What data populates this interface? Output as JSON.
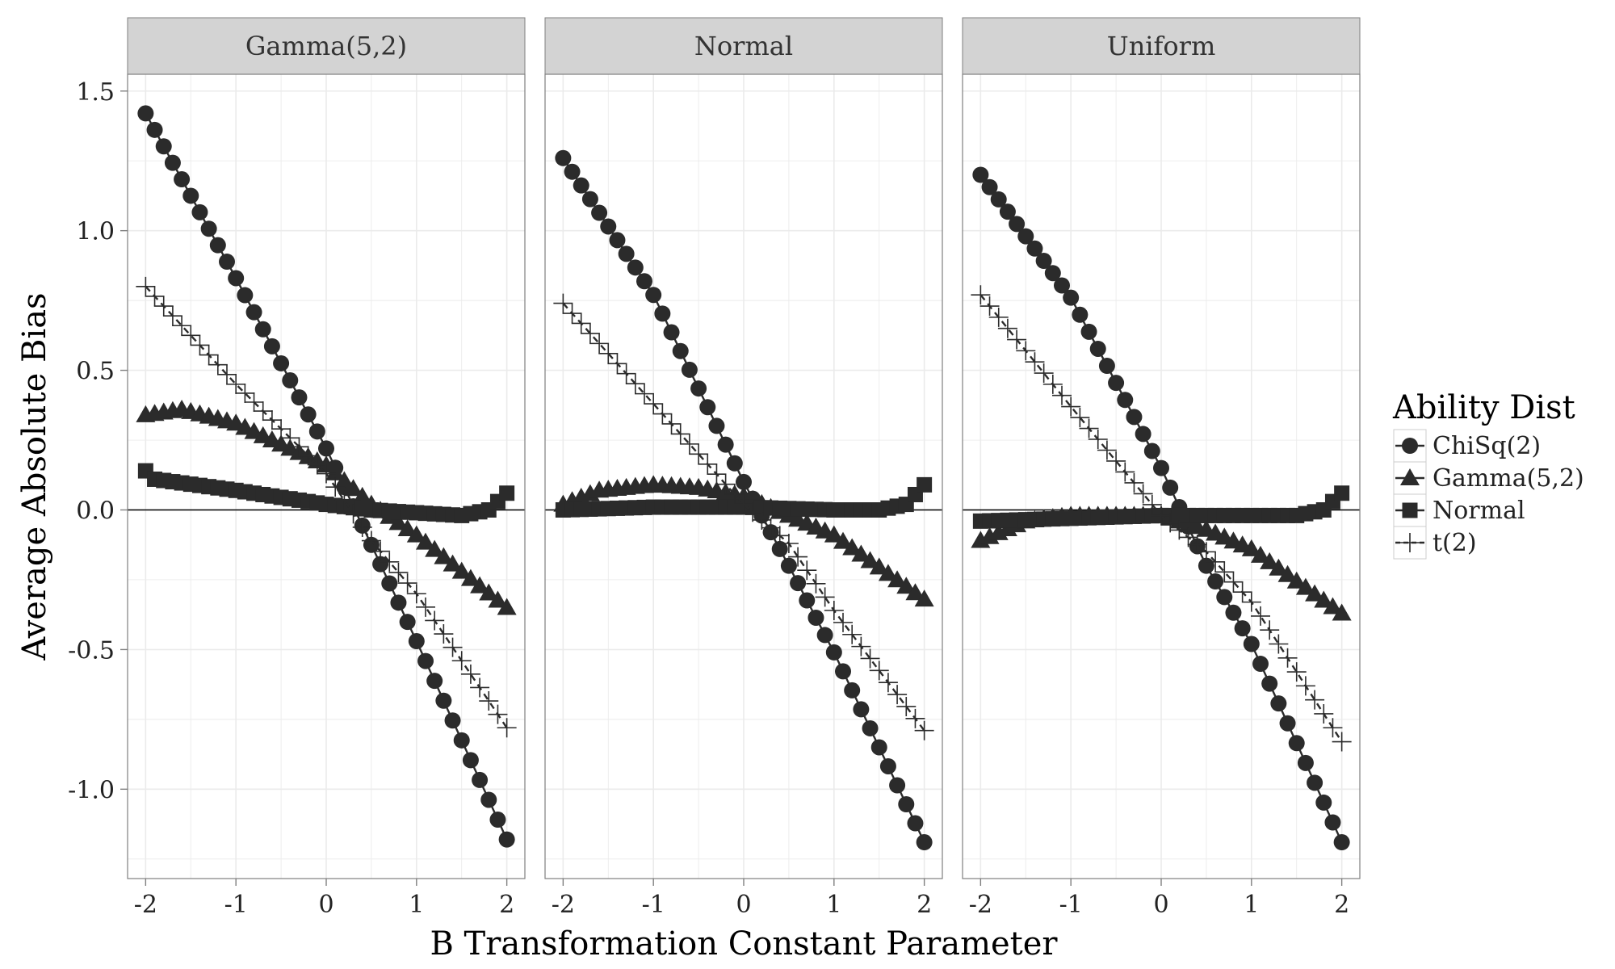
{
  "chart_data": {
    "type": "scatter",
    "xlabel": "B Transformation Constant Parameter",
    "ylabel": "Average Absolute Bias",
    "xlim": [
      -2.2,
      2.2
    ],
    "ylim": [
      -1.32,
      1.56
    ],
    "x_ticks": [
      -2,
      -1,
      0,
      1,
      2
    ],
    "x_tick_labels": [
      "-2",
      "-1",
      "0",
      "1",
      "2"
    ],
    "y_ticks": [
      -1.0,
      -0.5,
      0.0,
      0.5,
      1.0,
      1.5
    ],
    "y_tick_labels": [
      "-1.0",
      "-0.5",
      "0.0",
      "0.5",
      "1.0",
      "1.5"
    ],
    "x_step": 0.1,
    "x_points": [
      -2.0,
      -1.9,
      -1.8,
      -1.7,
      -1.6,
      -1.5,
      -1.4,
      -1.3,
      -1.2,
      -1.1,
      -1.0,
      -0.9,
      -0.8,
      -0.7,
      -0.6,
      -0.5,
      -0.4,
      -0.3,
      -0.2,
      -0.1,
      0.0,
      0.1,
      0.2,
      0.3,
      0.4,
      0.5,
      0.6,
      0.7,
      0.8,
      0.9,
      1.0,
      1.1,
      1.2,
      1.3,
      1.4,
      1.5,
      1.6,
      1.7,
      1.8,
      1.9,
      2.0
    ],
    "grid": true,
    "legend": {
      "title": "Ability Dist",
      "position": "right",
      "entries": [
        {
          "name": "ChiSq(2)",
          "shape": "circle",
          "line": "solid"
        },
        {
          "name": "Gamma(5,2)",
          "shape": "triangle",
          "line": "solid"
        },
        {
          "name": "Normal",
          "shape": "square",
          "line": "solid"
        },
        {
          "name": "t(2)",
          "shape": "cross",
          "line": "dashed"
        }
      ]
    },
    "colors": {
      "marker": "#2b2b2b",
      "strip_bg": "#d3d3d3",
      "grid": "#ebebeb",
      "panel_border": "#7f7f7f",
      "zero_line": "#000000"
    },
    "panels": [
      {
        "title": "Gamma(5,2)",
        "series": [
          {
            "name": "ChiSq(2)",
            "anchors": [
              [
                -2,
                1.42
              ],
              [
                -1,
                0.83
              ],
              [
                0,
                0.22
              ],
              [
                1,
                -0.47
              ],
              [
                2,
                -1.18
              ]
            ]
          },
          {
            "name": "Gamma(5,2)",
            "anchors": [
              [
                -2,
                0.34
              ],
              [
                -1.6,
                0.36
              ],
              [
                -1,
                0.31
              ],
              [
                0,
                0.16
              ],
              [
                0.5,
                0.02
              ],
              [
                1,
                -0.09
              ],
              [
                2,
                -0.35
              ]
            ]
          },
          {
            "name": "Normal",
            "anchors": [
              [
                -2,
                0.14
              ],
              [
                -1.9,
                0.11
              ],
              [
                -1,
                0.07
              ],
              [
                0,
                0.02
              ],
              [
                0.5,
                0.0
              ],
              [
                1,
                -0.01
              ],
              [
                1.5,
                -0.02
              ],
              [
                1.8,
                0.0
              ],
              [
                2,
                0.06
              ]
            ]
          },
          {
            "name": "t(2)",
            "anchors": [
              [
                -2,
                0.8
              ],
              [
                -1,
                0.45
              ],
              [
                0,
                0.13
              ],
              [
                0.5,
                -0.11
              ],
              [
                1,
                -0.3
              ],
              [
                2,
                -0.78
              ]
            ]
          }
        ]
      },
      {
        "title": "Normal",
        "series": [
          {
            "name": "ChiSq(2)",
            "anchors": [
              [
                -2,
                1.26
              ],
              [
                -1,
                0.77
              ],
              [
                0,
                0.1
              ],
              [
                0.5,
                -0.2
              ],
              [
                1,
                -0.51
              ],
              [
                2,
                -1.19
              ]
            ]
          },
          {
            "name": "Gamma(5,2)",
            "anchors": [
              [
                -2,
                0.02
              ],
              [
                -1.6,
                0.07
              ],
              [
                -1,
                0.09
              ],
              [
                -0.5,
                0.08
              ],
              [
                0,
                0.05
              ],
              [
                0.5,
                -0.02
              ],
              [
                1,
                -0.09
              ],
              [
                2,
                -0.32
              ]
            ]
          },
          {
            "name": "Normal",
            "anchors": [
              [
                -2,
                0.0
              ],
              [
                -1,
                0.01
              ],
              [
                0,
                0.01
              ],
              [
                1,
                0.0
              ],
              [
                1.5,
                0.0
              ],
              [
                1.8,
                0.02
              ],
              [
                2,
                0.09
              ]
            ]
          },
          {
            "name": "t(2)",
            "anchors": [
              [
                -2,
                0.74
              ],
              [
                -1,
                0.38
              ],
              [
                0,
                0.02
              ],
              [
                0.5,
                -0.12
              ],
              [
                1,
                -0.36
              ],
              [
                2,
                -0.79
              ]
            ]
          }
        ]
      },
      {
        "title": "Uniform",
        "series": [
          {
            "name": "ChiSq(2)",
            "anchors": [
              [
                -2,
                1.2
              ],
              [
                -1,
                0.76
              ],
              [
                0,
                0.15
              ],
              [
                0.5,
                -0.2
              ],
              [
                1,
                -0.48
              ],
              [
                2,
                -1.19
              ]
            ]
          },
          {
            "name": "Gamma(5,2)",
            "anchors": [
              [
                -2,
                -0.11
              ],
              [
                -1.5,
                -0.04
              ],
              [
                -1,
                -0.02
              ],
              [
                0,
                -0.02
              ],
              [
                0.5,
                -0.07
              ],
              [
                1,
                -0.14
              ],
              [
                2,
                -0.37
              ]
            ]
          },
          {
            "name": "Normal",
            "anchors": [
              [
                -2,
                -0.04
              ],
              [
                -1,
                -0.03
              ],
              [
                0,
                -0.02
              ],
              [
                1,
                -0.02
              ],
              [
                1.5,
                -0.02
              ],
              [
                1.8,
                0.0
              ],
              [
                2,
                0.06
              ]
            ]
          },
          {
            "name": "t(2)",
            "anchors": [
              [
                -2,
                0.77
              ],
              [
                -1,
                0.37
              ],
              [
                0,
                -0.02
              ],
              [
                0.5,
                -0.15
              ],
              [
                1,
                -0.33
              ],
              [
                2,
                -0.83
              ]
            ]
          }
        ]
      }
    ]
  }
}
